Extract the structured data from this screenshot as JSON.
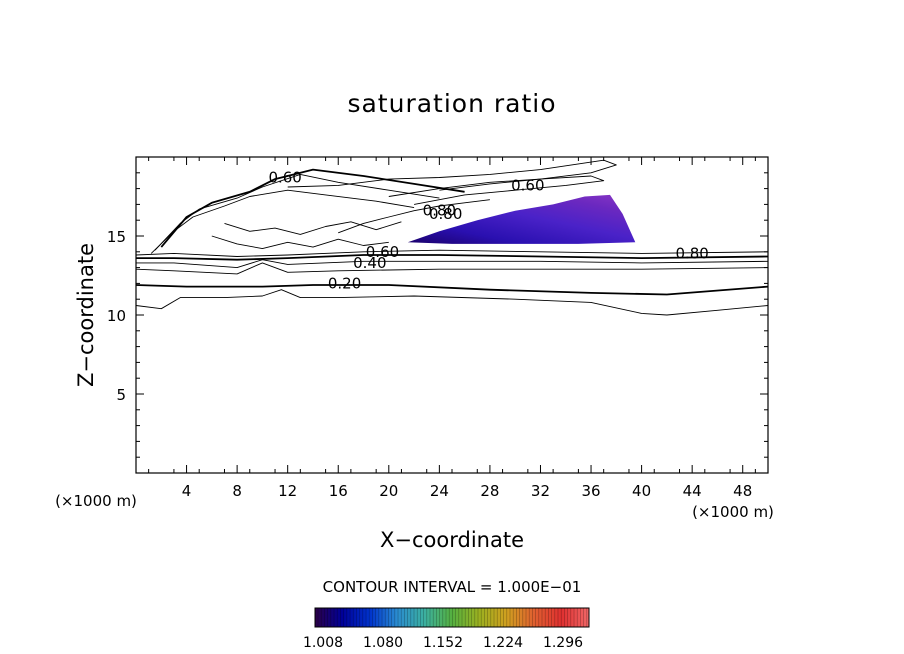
{
  "chart_data": {
    "type": "contour",
    "title": "saturation ratio",
    "xlabel": "X−coordinate",
    "ylabel": "Z−coordinate",
    "x_unit_label": "(×1000 m)",
    "y_unit_label": "(×1000 m)",
    "xlim": [
      0,
      50
    ],
    "ylim": [
      0,
      20
    ],
    "xticks": [
      4,
      8,
      12,
      16,
      20,
      24,
      28,
      32,
      36,
      40,
      44,
      48
    ],
    "yticks": [
      5,
      10,
      15
    ],
    "contour_interval_text": "CONTOUR INTERVAL = 1.000E−01",
    "contour_labels": [
      {
        "text": "0.60",
        "x": 11.8,
        "y": 18.7
      },
      {
        "text": "0.60",
        "x": 31.0,
        "y": 18.2
      },
      {
        "text": "0.80",
        "x": 24.0,
        "y": 16.6
      },
      {
        "text": "0.80",
        "x": 24.5,
        "y": 16.4
      },
      {
        "text": "0.60",
        "x": 19.5,
        "y": 14.0
      },
      {
        "text": "0.40",
        "x": 18.5,
        "y": 13.3
      },
      {
        "text": "0.80",
        "x": 44.0,
        "y": 13.9
      },
      {
        "text": "0.20",
        "x": 16.5,
        "y": 12.0
      }
    ],
    "contour_lines": [
      [
        [
          0,
          13.8
        ],
        [
          3,
          13.9
        ],
        [
          8,
          13.7
        ],
        [
          12,
          13.8
        ],
        [
          18,
          14.0
        ],
        [
          24,
          14.1
        ],
        [
          32,
          14.0
        ],
        [
          40,
          13.9
        ],
        [
          50,
          14.0
        ]
      ],
      [
        [
          0,
          13.6
        ],
        [
          3,
          13.6
        ],
        [
          8,
          13.5
        ],
        [
          12,
          13.6
        ],
        [
          18,
          13.8
        ],
        [
          24,
          13.8
        ],
        [
          32,
          13.7
        ],
        [
          40,
          13.6
        ],
        [
          50,
          13.7
        ]
      ],
      [
        [
          0,
          13.3
        ],
        [
          3,
          13.3
        ],
        [
          8,
          13.0
        ],
        [
          10,
          13.5
        ],
        [
          12,
          13.2
        ],
        [
          18,
          13.4
        ],
        [
          24,
          13.4
        ],
        [
          32,
          13.4
        ],
        [
          40,
          13.3
        ],
        [
          50,
          13.4
        ]
      ],
      [
        [
          0,
          12.9
        ],
        [
          3,
          12.8
        ],
        [
          8,
          12.6
        ],
        [
          10,
          13.3
        ],
        [
          12,
          12.7
        ],
        [
          16,
          12.8
        ],
        [
          24,
          12.9
        ],
        [
          32,
          12.9
        ],
        [
          40,
          12.9
        ],
        [
          50,
          13.0
        ]
      ],
      [
        [
          0,
          11.9
        ],
        [
          4,
          11.8
        ],
        [
          10,
          11.8
        ],
        [
          14,
          11.9
        ],
        [
          20,
          11.9
        ],
        [
          28,
          11.6
        ],
        [
          36,
          11.4
        ],
        [
          42,
          11.3
        ],
        [
          50,
          11.8
        ]
      ],
      [
        [
          0,
          10.6
        ],
        [
          2,
          10.4
        ],
        [
          3.5,
          11.1
        ],
        [
          7,
          11.1
        ],
        [
          10,
          11.2
        ],
        [
          11.5,
          11.6
        ],
        [
          13,
          11.1
        ],
        [
          16,
          11.1
        ],
        [
          22,
          11.2
        ],
        [
          30,
          11.0
        ],
        [
          36,
          10.8
        ],
        [
          40,
          10.1
        ],
        [
          42,
          10.0
        ],
        [
          46,
          10.3
        ],
        [
          50,
          10.6
        ]
      ],
      [
        [
          2,
          14.3
        ],
        [
          4,
          16.2
        ],
        [
          6,
          17.1
        ],
        [
          9,
          17.8
        ],
        [
          11,
          18.6
        ],
        [
          14,
          19.2
        ],
        [
          18,
          18.8
        ],
        [
          22,
          18.3
        ],
        [
          26,
          17.8
        ]
      ],
      [
        [
          1.5,
          14.1
        ],
        [
          3.5,
          15.8
        ],
        [
          5,
          16.7
        ],
        [
          8,
          17.4
        ],
        [
          10,
          18.1
        ],
        [
          13,
          18.9
        ],
        [
          16,
          18.4
        ],
        [
          20,
          17.9
        ],
        [
          24,
          17.4
        ]
      ],
      [
        [
          1.2,
          13.9
        ],
        [
          3,
          15.3
        ],
        [
          4.5,
          16.2
        ],
        [
          7,
          16.9
        ],
        [
          9,
          17.5
        ],
        [
          12,
          17.9
        ],
        [
          15,
          17.6
        ],
        [
          19,
          17.2
        ],
        [
          22,
          16.8
        ]
      ],
      [
        [
          20,
          17.5
        ],
        [
          24,
          18.0
        ],
        [
          28,
          18.4
        ],
        [
          32,
          18.6
        ],
        [
          36,
          19.0
        ],
        [
          38,
          19.5
        ],
        [
          37,
          19.8
        ],
        [
          32,
          19.2
        ],
        [
          28,
          18.9
        ],
        [
          24,
          18.7
        ],
        [
          20,
          18.6
        ],
        [
          16,
          18.2
        ],
        [
          12,
          18.1
        ]
      ],
      [
        [
          22,
          17.0
        ],
        [
          26,
          17.6
        ],
        [
          30,
          17.9
        ],
        [
          34,
          18.2
        ],
        [
          37,
          18.5
        ],
        [
          36,
          18.8
        ],
        [
          32,
          18.6
        ],
        [
          28,
          18.3
        ],
        [
          24,
          17.9
        ]
      ],
      [
        [
          6,
          15.0
        ],
        [
          8,
          14.5
        ],
        [
          10,
          14.2
        ],
        [
          12,
          14.6
        ],
        [
          14,
          14.3
        ],
        [
          16,
          14.8
        ],
        [
          18,
          14.4
        ],
        [
          20,
          14.6
        ]
      ],
      [
        [
          7,
          15.8
        ],
        [
          9,
          15.3
        ],
        [
          11,
          15.5
        ],
        [
          13,
          15.1
        ],
        [
          15,
          15.6
        ],
        [
          17,
          15.9
        ],
        [
          19,
          15.4
        ],
        [
          21,
          15.9
        ]
      ],
      [
        [
          16,
          15.2
        ],
        [
          18,
          15.8
        ],
        [
          20,
          16.2
        ],
        [
          22,
          16.6
        ],
        [
          24,
          16.9
        ],
        [
          26,
          17.1
        ],
        [
          28,
          17.3
        ]
      ]
    ],
    "filled_region": {
      "polygon": [
        [
          21.5,
          14.6
        ],
        [
          24,
          15.3
        ],
        [
          27,
          16.0
        ],
        [
          30,
          16.6
        ],
        [
          33,
          17.0
        ],
        [
          35.5,
          17.5
        ],
        [
          37.5,
          17.6
        ],
        [
          38.5,
          16.4
        ],
        [
          39.5,
          14.6
        ],
        [
          35,
          14.5
        ],
        [
          30,
          14.5
        ],
        [
          25,
          14.5
        ]
      ],
      "min_level": 1.008,
      "max_level": 1.296
    },
    "colorbar": {
      "ticks": [
        "1.008",
        "1.080",
        "1.152",
        "1.224",
        "1.296"
      ],
      "colors": [
        "#2b0048",
        "#000099",
        "#0033cc",
        "#2a8cd0",
        "#3cb0a0",
        "#55b040",
        "#9cb020",
        "#d0a020",
        "#e06030",
        "#e03030",
        "#f06868"
      ]
    }
  }
}
